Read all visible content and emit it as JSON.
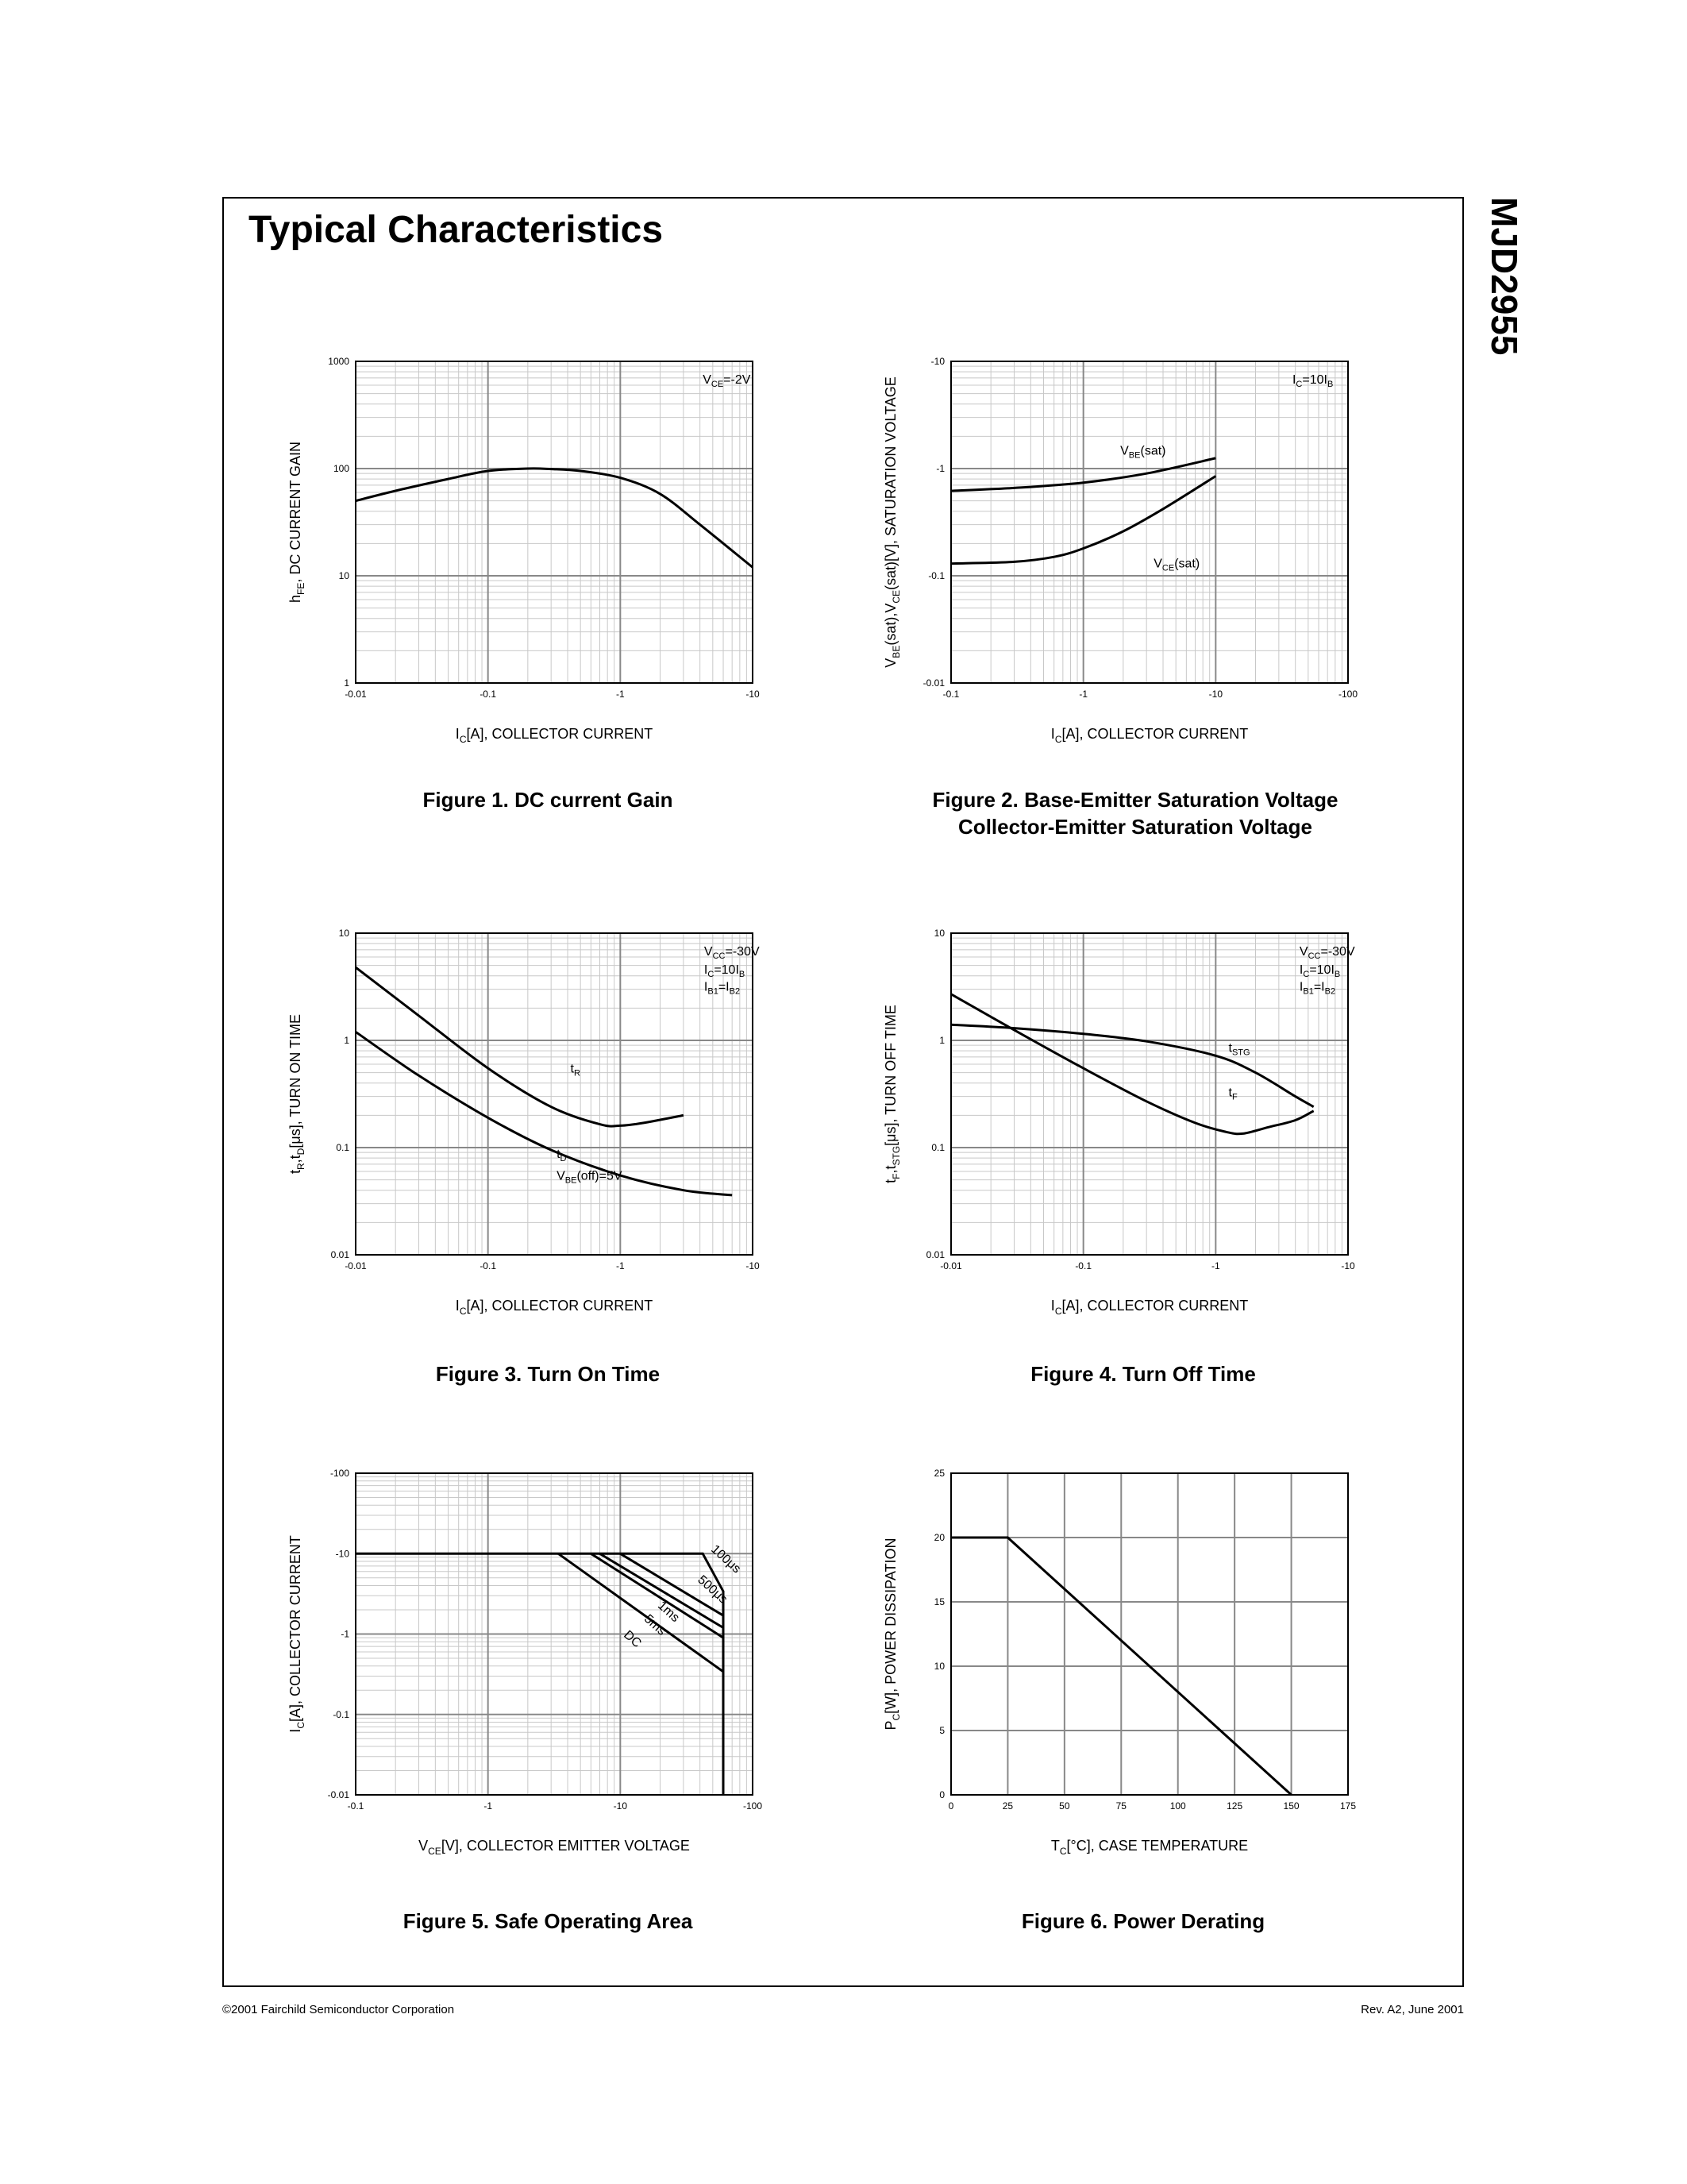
{
  "page": {
    "title": "Typical Characteristics",
    "part_number": "MJD2955",
    "footer_left": "©2001 Fairchild Semiconductor Corporation",
    "footer_right": "Rev. A2, June 2001"
  },
  "colors": {
    "ink": "#000000",
    "grid": "#888888",
    "grid_minor": "#c8c8c8",
    "paper": "#ffffff"
  },
  "chart_data": [
    {
      "id": "fig1",
      "type": "line",
      "title": "Figure 1. DC current Gain",
      "xlabel": "I_C[A], COLLECTOR CURRENT",
      "ylabel": "h_FE, DC CURRENT GAIN",
      "xscale": "log",
      "yscale": "log",
      "xlim": [
        0.01,
        10
      ],
      "ylim": [
        1,
        1000
      ],
      "xticks": [
        "-0.01",
        "-0.1",
        "-1",
        "-10"
      ],
      "yticks": [
        "1",
        "10",
        "100",
        "1000"
      ],
      "grid": true,
      "series": [
        {
          "label": "",
          "x": [
            0.01,
            0.02,
            0.05,
            0.1,
            0.2,
            0.3,
            0.5,
            1,
            2,
            4,
            10
          ],
          "y": [
            50,
            62,
            80,
            95,
            100,
            99,
            95,
            82,
            58,
            30,
            12
          ]
        }
      ],
      "annotations": [
        {
          "text": "V_CE=-2V",
          "x": 4.2,
          "y": 620
        }
      ]
    },
    {
      "id": "fig2",
      "type": "line",
      "title": "Figure 2. Base-Emitter Saturation Voltage\nCollector-Emitter Saturation Voltage",
      "xlabel": "I_C[A], COLLECTOR CURRENT",
      "ylabel": "V_BE(sat),V_CE(sat)[V], SATURATION VOLTAGE",
      "xscale": "log",
      "yscale": "log",
      "xlim": [
        0.1,
        100
      ],
      "ylim": [
        0.01,
        10
      ],
      "xticks": [
        "-0.1",
        "-1",
        "-10",
        "-100"
      ],
      "yticks": [
        "-0.01",
        "-0.1",
        "-1",
        "-10"
      ],
      "grid": true,
      "series": [
        {
          "label": "V_BE(sat)",
          "x": [
            0.1,
            0.3,
            1,
            3,
            10
          ],
          "y": [
            0.62,
            0.66,
            0.74,
            0.9,
            1.25
          ]
        },
        {
          "label": "V_CE(sat)",
          "x": [
            0.1,
            0.3,
            0.6,
            1,
            2,
            4,
            10
          ],
          "y": [
            0.13,
            0.135,
            0.15,
            0.18,
            0.26,
            0.42,
            0.85
          ]
        }
      ],
      "annotations": [
        {
          "text": "I_C=10I_B",
          "x": 38,
          "y": 6.2
        },
        {
          "text": "V_BE(sat)",
          "x": 1.9,
          "y": 1.35
        },
        {
          "text": "V_CE(sat)",
          "x": 3.4,
          "y": 0.12
        }
      ]
    },
    {
      "id": "fig3",
      "type": "line",
      "title": "Figure 3. Turn On Time",
      "xlabel": "I_C[A], COLLECTOR CURRENT",
      "ylabel": "t_R,t_D[μs], TURN ON TIME",
      "xscale": "log",
      "yscale": "log",
      "xlim": [
        0.01,
        10
      ],
      "ylim": [
        0.01,
        10
      ],
      "xticks": [
        "-0.01",
        "-0.1",
        "-1",
        "-10"
      ],
      "yticks": [
        "0.01",
        "0.1",
        "1",
        "10"
      ],
      "grid": true,
      "series": [
        {
          "label": "t_R",
          "x": [
            0.01,
            0.03,
            0.1,
            0.3,
            0.7,
            1,
            1.5,
            3
          ],
          "y": [
            4.8,
            1.7,
            0.55,
            0.24,
            0.165,
            0.16,
            0.17,
            0.2
          ]
        },
        {
          "label": "t_D",
          "x": [
            0.01,
            0.03,
            0.1,
            0.3,
            1,
            3,
            7
          ],
          "y": [
            1.2,
            0.47,
            0.19,
            0.095,
            0.055,
            0.04,
            0.036
          ]
        }
      ],
      "annotations": [
        {
          "text": "V_CC=-30V",
          "x": 4.3,
          "y": 6.2
        },
        {
          "text": "I_C=10I_B",
          "x": 4.3,
          "y": 4.2
        },
        {
          "text": "I_B1=I_B2",
          "x": 4.3,
          "y": 2.9
        },
        {
          "text": "t_R",
          "x": 0.42,
          "y": 0.5
        },
        {
          "text": "t_D",
          "x": 0.33,
          "y": 0.08
        },
        {
          "text": "V_BE(off)=5V",
          "x": 0.33,
          "y": 0.05
        }
      ]
    },
    {
      "id": "fig4",
      "type": "line",
      "title": "Figure 4. Turn Off Time",
      "xlabel": "I_C[A], COLLECTOR CURRENT",
      "ylabel": "t_F,t_STG[μs], TURN OFF TIME",
      "xscale": "log",
      "yscale": "log",
      "xlim": [
        0.01,
        10
      ],
      "ylim": [
        0.01,
        10
      ],
      "xticks": [
        "-0.01",
        "-0.1",
        "-1",
        "-10"
      ],
      "yticks": [
        "0.01",
        "0.1",
        "1",
        "10"
      ],
      "grid": true,
      "series": [
        {
          "label": "t_STG",
          "x": [
            0.01,
            0.03,
            0.1,
            0.3,
            1,
            2,
            4,
            5.5
          ],
          "y": [
            1.4,
            1.3,
            1.15,
            0.98,
            0.72,
            0.5,
            0.3,
            0.24
          ]
        },
        {
          "label": "t_F",
          "x": [
            0.01,
            0.03,
            0.1,
            0.3,
            0.7,
            1.2,
            1.6,
            2.5,
            4,
            5.5
          ],
          "y": [
            2.7,
            1.25,
            0.55,
            0.27,
            0.17,
            0.14,
            0.135,
            0.155,
            0.18,
            0.22
          ]
        }
      ],
      "annotations": [
        {
          "text": "V_CC=-30V",
          "x": 4.3,
          "y": 6.2
        },
        {
          "text": "I_C=10I_B",
          "x": 4.3,
          "y": 4.2
        },
        {
          "text": "I_B1=I_B2",
          "x": 4.3,
          "y": 2.9
        },
        {
          "text": "t_STG",
          "x": 1.25,
          "y": 0.78
        },
        {
          "text": "t_F",
          "x": 1.25,
          "y": 0.3
        }
      ]
    },
    {
      "id": "fig5",
      "type": "line",
      "title": "Figure 5. Safe Operating Area",
      "xlabel": "V_CE[V], COLLECTOR EMITTER VOLTAGE",
      "ylabel": "I_C[A], COLLECTOR CURRENT",
      "xscale": "log",
      "yscale": "log",
      "xlim": [
        0.1,
        100
      ],
      "ylim": [
        0.01,
        100
      ],
      "xticks": [
        "-0.1",
        "-1",
        "-10",
        "-100"
      ],
      "yticks": [
        "-0.01",
        "-0.1",
        "-1",
        "-10",
        "-100"
      ],
      "grid": true,
      "series": [
        {
          "label": "100μs",
          "x": [
            0.1,
            42,
            60,
            60
          ],
          "y": [
            10,
            10,
            3.4,
            0.01
          ]
        },
        {
          "label": "500μs",
          "x": [
            10,
            60
          ],
          "y": [
            10,
            1.7
          ]
        },
        {
          "label": "1ms",
          "x": [
            7,
            60
          ],
          "y": [
            10,
            1.2
          ]
        },
        {
          "label": "5ms",
          "x": [
            6,
            60
          ],
          "y": [
            10,
            0.9
          ]
        },
        {
          "label": "DC",
          "x": [
            3.4,
            60
          ],
          "y": [
            10,
            0.34
          ]
        }
      ],
      "annotations": [
        {
          "text": "100μs",
          "x": 48,
          "y": 11,
          "rotate": 42
        },
        {
          "text": "500μs",
          "x": 38,
          "y": 4.6,
          "rotate": 42
        },
        {
          "text": "1ms",
          "x": 19,
          "y": 2.2,
          "rotate": 42
        },
        {
          "text": "5ms",
          "x": 15,
          "y": 1.5,
          "rotate": 42
        },
        {
          "text": "DC",
          "x": 10.5,
          "y": 0.95,
          "rotate": 42
        }
      ]
    },
    {
      "id": "fig6",
      "type": "line",
      "title": "Figure 6. Power Derating",
      "xlabel": "T_C[°C], CASE TEMPERATURE",
      "ylabel": "P_C[W], POWER DISSIPATION",
      "xscale": "linear",
      "yscale": "linear",
      "xlim": [
        0,
        175
      ],
      "ylim": [
        0,
        25
      ],
      "xticks": [
        "0",
        "25",
        "50",
        "75",
        "100",
        "125",
        "150",
        "175"
      ],
      "yticks": [
        "0",
        "5",
        "10",
        "15",
        "20",
        "25"
      ],
      "grid": true,
      "series": [
        {
          "label": "",
          "x": [
            0,
            25,
            150
          ],
          "y": [
            20,
            20,
            0
          ]
        }
      ],
      "annotations": []
    }
  ]
}
